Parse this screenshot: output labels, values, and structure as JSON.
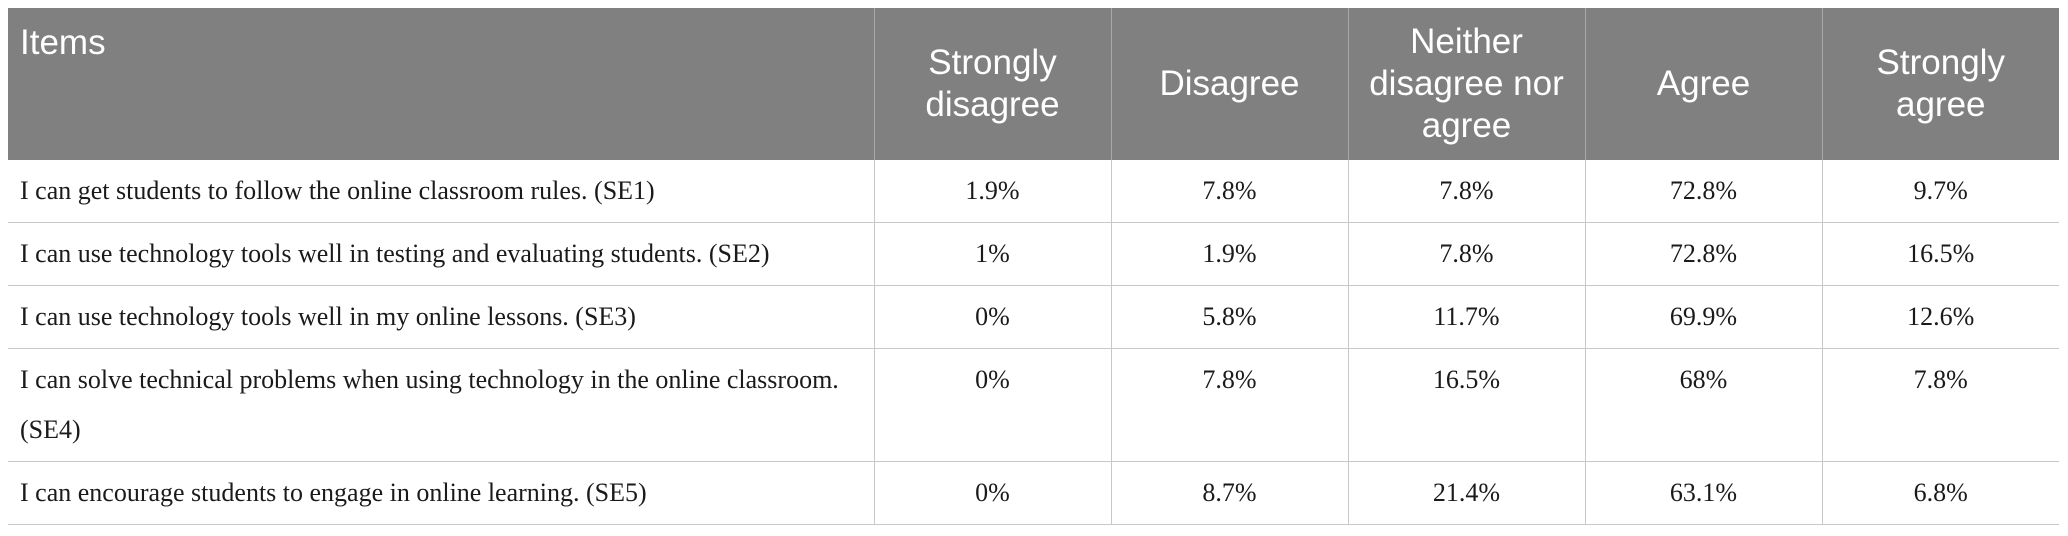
{
  "table": {
    "headers": [
      "Items",
      "Strongly disagree",
      "Disagree",
      "Neither disagree nor agree",
      "Agree",
      "Strongly agree"
    ],
    "rows": [
      {
        "item": "I can get students to follow the online classroom rules. (SE1)",
        "values": [
          "1.9%",
          "7.8%",
          "7.8%",
          "72.8%",
          "9.7%"
        ]
      },
      {
        "item": "I can use technology tools well in testing and evaluating students. (SE2)",
        "values": [
          "1%",
          "1.9%",
          "7.8%",
          "72.8%",
          "16.5%"
        ]
      },
      {
        "item": "I can use technology tools well in my online lessons. (SE3)",
        "values": [
          "0%",
          "5.8%",
          "11.7%",
          "69.9%",
          "12.6%"
        ]
      },
      {
        "item": "I can solve technical problems when using technology in the online classroom. (SE4)",
        "values": [
          "0%",
          "7.8%",
          "16.5%",
          "68%",
          "7.8%"
        ]
      },
      {
        "item": "I can encourage students to engage in online learning. (SE5)",
        "values": [
          "0%",
          "8.7%",
          "21.4%",
          "63.1%",
          "6.8%"
        ]
      }
    ]
  },
  "colors": {
    "header_bg": "#808080",
    "header_text": "#ffffff",
    "grid_line": "#c8c8c8"
  }
}
